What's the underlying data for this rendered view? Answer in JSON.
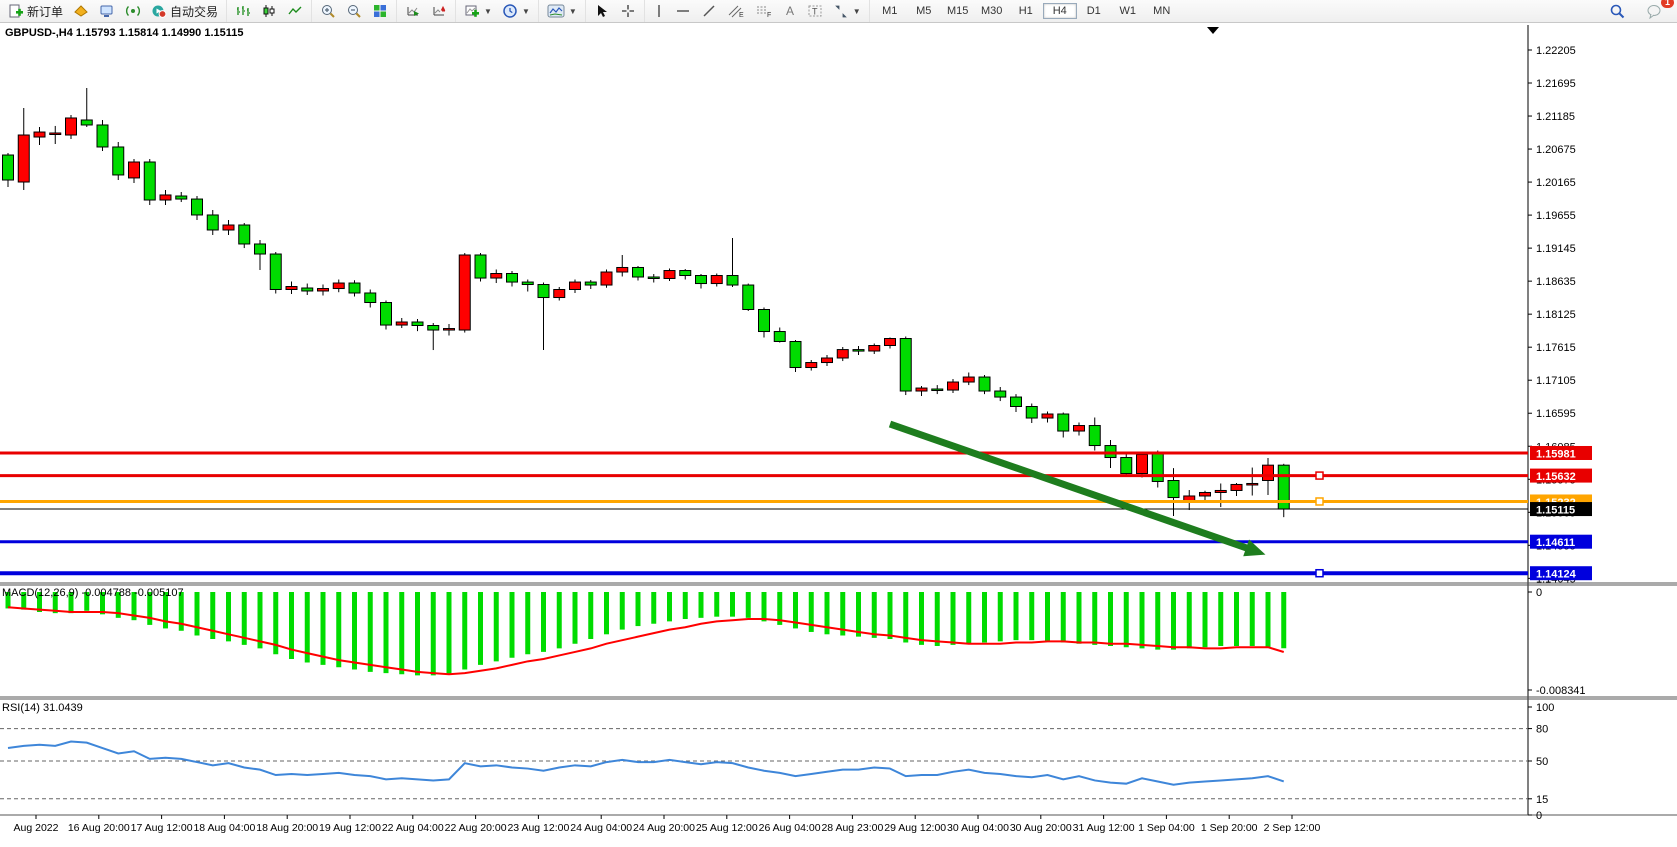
{
  "toolbar": {
    "new_order_label": "新订单",
    "autotrading_label": "自动交易",
    "timeframes": [
      "M1",
      "M5",
      "M15",
      "M30",
      "H1",
      "H4",
      "D1",
      "W1",
      "MN"
    ],
    "active_timeframe": "H4",
    "notification_badge": "1"
  },
  "chart_header": "GBPUSD-,H4  1.15793 1.15814 1.14990 1.15115",
  "time_axis": {
    "labels": [
      "Aug 2022",
      "16 Aug 20:00",
      "17 Aug 12:00",
      "18 Aug 04:00",
      "18 Aug 20:00",
      "19 Aug 12:00",
      "22 Aug 04:00",
      "22 Aug 20:00",
      "23 Aug 12:00",
      "24 Aug 04:00",
      "24 Aug 20:00",
      "25 Aug 12:00",
      "26 Aug 04:00",
      "28 Aug 23:00",
      "29 Aug 12:00",
      "30 Aug 04:00",
      "30 Aug 20:00",
      "31 Aug 12:00",
      "1 Sep 04:00",
      "1 Sep 20:00",
      "2 Sep 12:00"
    ]
  },
  "chart_data": [
    {
      "type": "candlestick",
      "symbol": "GBPUSD-",
      "timeframe": "H4",
      "last_ohlc": {
        "open": "1.15793",
        "high": "1.15814",
        "low": "1.14990",
        "close": "1.15115"
      },
      "up_color": "#ff0000",
      "down_color": "#00dc00",
      "ylim": [
        1.13973,
        1.22591
      ],
      "y_ticks": [
        "1.22205",
        "1.21695",
        "1.21185",
        "1.20675",
        "1.20165",
        "1.19655",
        "1.19145",
        "1.18635",
        "1.18125",
        "1.17615",
        "1.17105",
        "1.16595",
        "1.16085",
        "1.15575",
        "1.15065",
        "1.14555",
        "1.14045"
      ],
      "candles": [
        [
          1.20583,
          1.20614,
          1.20089,
          1.20197
        ],
        [
          1.20166,
          1.21309,
          1.20043,
          1.20892
        ],
        [
          1.20861,
          1.21016,
          1.20738,
          1.20938
        ],
        [
          1.20907,
          1.21032,
          1.20753,
          1.20923
        ],
        [
          1.20892,
          1.21201,
          1.2083,
          1.21155
        ],
        [
          1.21124,
          1.21618,
          1.21016,
          1.21047
        ],
        [
          1.21047,
          1.21124,
          1.20645,
          1.20707
        ],
        [
          1.20707,
          1.20784,
          1.20197,
          1.20275
        ],
        [
          1.20229,
          1.20521,
          1.20151,
          1.20475
        ],
        [
          1.20475,
          1.20521,
          1.19811,
          1.19888
        ],
        [
          1.19888,
          1.20043,
          1.19811,
          1.19966
        ],
        [
          1.1995,
          1.20012,
          1.19857,
          1.19903
        ],
        [
          1.19903,
          1.1995,
          1.1958,
          1.19657
        ],
        [
          1.19657,
          1.19734,
          1.19348,
          1.19425
        ],
        [
          1.19425,
          1.1958,
          1.19348,
          1.19502
        ],
        [
          1.19502,
          1.19533,
          1.19146,
          1.19209
        ],
        [
          1.19209,
          1.1927,
          1.18807,
          1.19054
        ],
        [
          1.19054,
          1.19085,
          1.18444,
          1.18506
        ],
        [
          1.18506,
          1.1863,
          1.18436,
          1.18552
        ],
        [
          1.18529,
          1.18598,
          1.18421,
          1.18483
        ],
        [
          1.18483,
          1.18583,
          1.18413,
          1.18521
        ],
        [
          1.18521,
          1.1866,
          1.18464,
          1.18606
        ],
        [
          1.18606,
          1.18648,
          1.18397,
          1.18452
        ],
        [
          1.18452,
          1.18506,
          1.18228,
          1.18305
        ],
        [
          1.18305,
          1.18336,
          1.17888,
          1.17957
        ],
        [
          1.17957,
          1.18066,
          1.17911,
          1.18004
        ],
        [
          1.18004,
          1.1805,
          1.17864,
          1.1795
        ],
        [
          1.1795,
          1.17988,
          1.17571,
          1.1788
        ],
        [
          1.1788,
          1.17973,
          1.17795,
          1.17903
        ],
        [
          1.1788,
          1.19069,
          1.17841,
          1.19039
        ],
        [
          1.19039,
          1.19069,
          1.1863,
          1.18683
        ],
        [
          1.18683,
          1.18815,
          1.18606,
          1.18753
        ],
        [
          1.18753,
          1.18791,
          1.18552,
          1.18621
        ],
        [
          1.18621,
          1.1866,
          1.18475,
          1.18583
        ],
        [
          1.18583,
          1.18614,
          1.17571,
          1.18382
        ],
        [
          1.18382,
          1.18545,
          1.18336,
          1.18506
        ],
        [
          1.18506,
          1.1866,
          1.18452,
          1.18621
        ],
        [
          1.18621,
          1.18653,
          1.18514,
          1.18575
        ],
        [
          1.18575,
          1.18815,
          1.18533,
          1.18776
        ],
        [
          1.18776,
          1.19039,
          1.18707,
          1.18846
        ],
        [
          1.18846,
          1.18869,
          1.18645,
          1.18699
        ],
        [
          1.18699,
          1.18745,
          1.18614,
          1.18676
        ],
        [
          1.18676,
          1.1883,
          1.18637,
          1.18799
        ],
        [
          1.18799,
          1.18822,
          1.1866,
          1.18722
        ],
        [
          1.18722,
          1.18745,
          1.18521,
          1.18598
        ],
        [
          1.18598,
          1.18753,
          1.18552,
          1.18722
        ],
        [
          1.18722,
          1.19301,
          1.18545,
          1.18575
        ],
        [
          1.18575,
          1.18598,
          1.18174,
          1.18197
        ],
        [
          1.18197,
          1.18228,
          1.17764,
          1.17857
        ],
        [
          1.17857,
          1.17919,
          1.17687,
          1.17703
        ],
        [
          1.17703,
          1.17726,
          1.17231,
          1.17301
        ],
        [
          1.17301,
          1.17417,
          1.17254,
          1.17378
        ],
        [
          1.17378,
          1.17494,
          1.17324,
          1.17448
        ],
        [
          1.17448,
          1.17618,
          1.17401,
          1.17578
        ],
        [
          1.17578,
          1.17633,
          1.17494,
          1.17556
        ],
        [
          1.17556,
          1.17672,
          1.1751,
          1.17641
        ],
        [
          1.17641,
          1.17765,
          1.17594,
          1.17749
        ],
        [
          1.17749,
          1.1778,
          1.16876,
          1.16938
        ],
        [
          1.16938,
          1.17015,
          1.16861,
          1.16984
        ],
        [
          1.16969,
          1.1703,
          1.16891,
          1.16953
        ],
        [
          1.16953,
          1.17123,
          1.16907,
          1.17077
        ],
        [
          1.17077,
          1.17224,
          1.1703,
          1.17154
        ],
        [
          1.17154,
          1.17185,
          1.16891,
          1.16938
        ],
        [
          1.16938,
          1.17,
          1.16783,
          1.16845
        ],
        [
          1.16845,
          1.16891,
          1.16614,
          1.16699
        ],
        [
          1.16699,
          1.16745,
          1.16444,
          1.16521
        ],
        [
          1.16521,
          1.16622,
          1.16452,
          1.16583
        ],
        [
          1.16583,
          1.16606,
          1.1622,
          1.1632
        ],
        [
          1.1632,
          1.16452,
          1.16251,
          1.16405
        ],
        [
          1.16405,
          1.16529,
          1.16019,
          1.16096
        ],
        [
          1.16096,
          1.16181,
          1.15749,
          1.15911
        ],
        [
          1.15911,
          1.15973,
          1.15618,
          1.15664
        ],
        [
          1.15664,
          1.15996,
          1.15602,
          1.15957
        ],
        [
          1.1598,
          1.16019,
          1.15448,
          1.15541
        ],
        [
          1.15556,
          1.15748,
          1.15007,
          1.15293
        ],
        [
          1.15239,
          1.15409,
          1.151,
          1.15317
        ],
        [
          1.15317,
          1.15398,
          1.15251,
          1.15371
        ],
        [
          1.15371,
          1.1551,
          1.15146,
          1.15402
        ],
        [
          1.15402,
          1.15518,
          1.15317,
          1.15495
        ],
        [
          1.15487,
          1.15756,
          1.15324,
          1.1551
        ],
        [
          1.15556,
          1.15903,
          1.15332,
          1.15793
        ],
        [
          1.15793,
          1.15814,
          1.1499,
          1.15115
        ]
      ],
      "hlines": [
        {
          "price": 1.15981,
          "color": "#e80000",
          "width": 3,
          "label": "1.15981",
          "handle": false
        },
        {
          "price": 1.15632,
          "color": "#e80000",
          "width": 3,
          "label": "1.15632",
          "handle": true
        },
        {
          "price": 1.15232,
          "color": "#ffa500",
          "width": 3,
          "label": "1.15232",
          "handle": true
        },
        {
          "price": 1.15115,
          "color": "#000000",
          "width": 1,
          "label": "1.15115",
          "handle": false
        },
        {
          "price": 1.14611,
          "color": "#0000dd",
          "width": 3,
          "label": "1.14611",
          "handle": false
        },
        {
          "price": 1.14124,
          "color": "#0000dd",
          "width": 4,
          "label": "1.14124",
          "handle": true
        }
      ],
      "arrow": {
        "from_index": 56,
        "from_price": 1.16428,
        "to_index": 79,
        "to_price": 1.14483,
        "color": "#1e7d1e"
      }
    },
    {
      "type": "bar",
      "name": "MACD(12,26,9)",
      "label": "MACD(12,26,9) -0.004788 -0.005107",
      "value_main": "-0.004788",
      "value_signal": "-0.005107",
      "hist_color": "#00dc00",
      "signal_color": "#ff0000",
      "ylim": [
        -0.008936,
        0.000596
      ],
      "y_ticks": [
        {
          "v": 0,
          "label": "0"
        },
        {
          "v": -0.008341,
          "label": "-0.008341"
        }
      ],
      "values": [
        -0.0014,
        -0.0015,
        -0.0017,
        -0.0018,
        -0.0018,
        -0.0016,
        -0.0019,
        -0.0022,
        -0.0024,
        -0.0028,
        -0.0031,
        -0.0033,
        -0.0037,
        -0.004,
        -0.0042,
        -0.0045,
        -0.0048,
        -0.0053,
        -0.0057,
        -0.006,
        -0.0062,
        -0.0064,
        -0.0066,
        -0.0068,
        -0.0069,
        -0.007,
        -0.0071,
        -0.0071,
        -0.007,
        -0.0066,
        -0.0062,
        -0.0059,
        -0.0056,
        -0.0053,
        -0.0051,
        -0.0048,
        -0.0044,
        -0.004,
        -0.0036,
        -0.0032,
        -0.0029,
        -0.0027,
        -0.0025,
        -0.0023,
        -0.0022,
        -0.0021,
        -0.0021,
        -0.0022,
        -0.0025,
        -0.0028,
        -0.0031,
        -0.0034,
        -0.0036,
        -0.0037,
        -0.0038,
        -0.0039,
        -0.004,
        -0.0043,
        -0.0045,
        -0.0046,
        -0.0045,
        -0.0044,
        -0.0043,
        -0.0042,
        -0.0041,
        -0.0041,
        -0.0042,
        -0.0043,
        -0.0044,
        -0.0045,
        -0.0046,
        -0.0047,
        -0.0048,
        -0.0049,
        -0.0049,
        -0.0048,
        -0.0047,
        -0.0046,
        -0.0046,
        -0.0046,
        -0.0047,
        -0.004788
      ],
      "signal": [
        -0.0013,
        -0.0014,
        -0.0015,
        -0.0016,
        -0.0017,
        -0.0017,
        -0.0017,
        -0.0018,
        -0.002,
        -0.0022,
        -0.0025,
        -0.0027,
        -0.003,
        -0.0033,
        -0.0036,
        -0.0039,
        -0.0042,
        -0.0045,
        -0.0049,
        -0.0052,
        -0.0055,
        -0.0058,
        -0.006,
        -0.0062,
        -0.0064,
        -0.0066,
        -0.0068,
        -0.0069,
        -0.007,
        -0.0069,
        -0.0067,
        -0.0065,
        -0.0062,
        -0.0059,
        -0.0057,
        -0.0054,
        -0.0051,
        -0.0048,
        -0.0044,
        -0.0041,
        -0.0038,
        -0.0035,
        -0.0032,
        -0.003,
        -0.0027,
        -0.0025,
        -0.0024,
        -0.0023,
        -0.0023,
        -0.0024,
        -0.0026,
        -0.0028,
        -0.003,
        -0.0032,
        -0.0034,
        -0.0036,
        -0.0037,
        -0.0039,
        -0.0041,
        -0.0042,
        -0.0043,
        -0.0044,
        -0.0044,
        -0.0044,
        -0.0043,
        -0.0043,
        -0.0042,
        -0.0042,
        -0.0043,
        -0.0043,
        -0.0044,
        -0.0044,
        -0.0045,
        -0.0046,
        -0.0047,
        -0.0047,
        -0.0048,
        -0.0048,
        -0.0047,
        -0.0047,
        -0.0047,
        -0.005107
      ]
    },
    {
      "type": "line",
      "name": "RSI(14)",
      "label": "RSI(14) 31.0439",
      "current_value": "31.0439",
      "line_color": "#3e86d9",
      "levels": [
        80,
        50,
        15
      ],
      "y_ticks": [
        "100",
        "80",
        "50",
        "15",
        "0"
      ],
      "ylim": [
        0,
        106.5
      ],
      "values": [
        62,
        64,
        65,
        64,
        68,
        67,
        62,
        57,
        59,
        52,
        53,
        52,
        49,
        46,
        48,
        44,
        42,
        37,
        38,
        37,
        38,
        39,
        37,
        36,
        33,
        34,
        33,
        32,
        33,
        48,
        45,
        46,
        44,
        43,
        41,
        44,
        46,
        45,
        49,
        51,
        49,
        49,
        51,
        49,
        47,
        49,
        48,
        44,
        41,
        39,
        36,
        38,
        40,
        42,
        42,
        44,
        43,
        36,
        37,
        37,
        40,
        42,
        39,
        38,
        36,
        35,
        37,
        33,
        36,
        32,
        30,
        29,
        34,
        31,
        28,
        30,
        31,
        32,
        33,
        34,
        36,
        31.04
      ]
    }
  ]
}
